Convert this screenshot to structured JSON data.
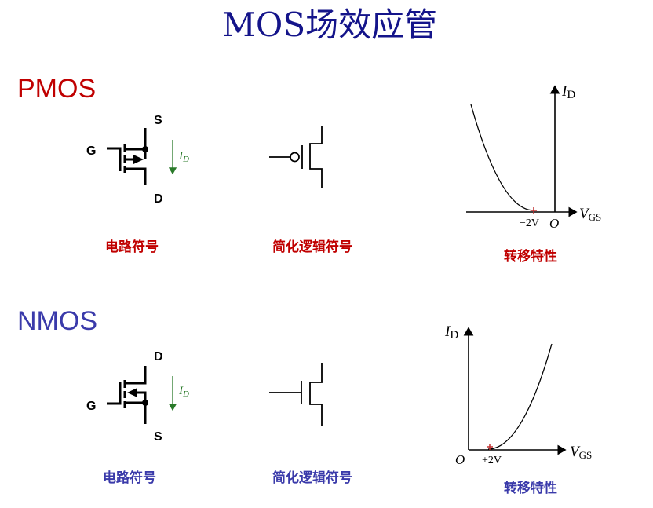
{
  "title": "MOS场效应管",
  "colors": {
    "title": "#14148a",
    "pmos": "#c00000",
    "nmos": "#3a3aaa",
    "current_arrow": "#2a7a2a",
    "threshold_mark": "#c03030"
  },
  "pmos": {
    "label": "PMOS",
    "pins": {
      "gate": "G",
      "source": "S",
      "drain": "D"
    },
    "current": {
      "symbol": "I",
      "subscript": "D"
    },
    "captions": {
      "circuit": "电路符号",
      "logic": "简化逻辑符号",
      "transfer": "转移特性"
    },
    "graph": {
      "y_label": "I",
      "y_sub": "D",
      "x_label": "V",
      "x_sub": "GS",
      "origin": "O",
      "threshold": "−2V"
    }
  },
  "nmos": {
    "label": "NMOS",
    "pins": {
      "gate": "G",
      "source": "S",
      "drain": "D"
    },
    "current": {
      "symbol": "I",
      "subscript": "D"
    },
    "captions": {
      "circuit": "电路符号",
      "logic": "简化逻辑符号",
      "transfer": "转移特性"
    },
    "graph": {
      "y_label": "I",
      "y_sub": "D",
      "x_label": "V",
      "x_sub": "GS",
      "origin": "O",
      "threshold": "+2V"
    }
  }
}
